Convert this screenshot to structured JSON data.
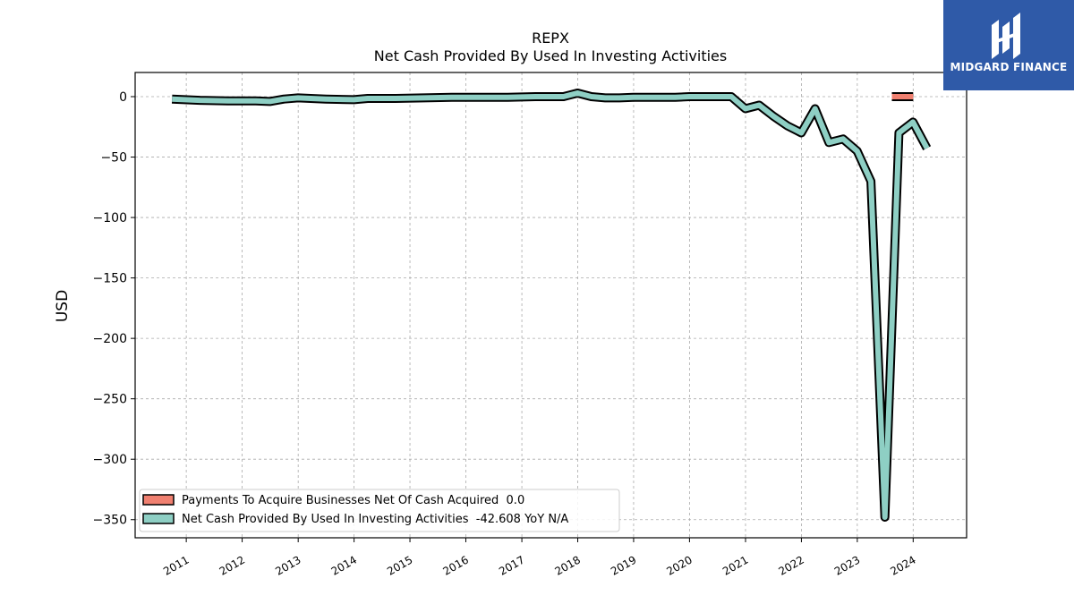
{
  "brand": {
    "name": "MIDGARD FINANCE",
    "bg_color": "#2f5aa8"
  },
  "chart_data": {
    "type": "line",
    "title": "REPX",
    "subtitle": "Net Cash Provided By Used In Investing Activities",
    "ylabel": "USD",
    "xlabel": "",
    "ylim": [
      -365,
      20
    ],
    "yticks": [
      0,
      -50,
      -100,
      -150,
      -200,
      -250,
      -300,
      -350
    ],
    "xlim": [
      "2010-02-01",
      "2024-12-15"
    ],
    "xticks": [
      "2011",
      "2012",
      "2013",
      "2014",
      "2015",
      "2016",
      "2017",
      "2018",
      "2019",
      "2020",
      "2021",
      "2022",
      "2023",
      "2024"
    ],
    "grid": true,
    "legend_position": "lower-left",
    "series": [
      {
        "name": "Payments To Acquire Businesses Net Of Cash Acquired  0.0",
        "color": "#f08070",
        "x": [
          "2023-08-15",
          "2024-01-01"
        ],
        "y": [
          0.0,
          0.0
        ]
      },
      {
        "name": "Net Cash Provided By Used In Investing Activities  -42.608 YoY N/A",
        "color": "#8ecfc4",
        "x": [
          "2010-09-30",
          "2011-03-31",
          "2011-09-30",
          "2012-03-31",
          "2012-06-30",
          "2012-09-30",
          "2012-12-31",
          "2013-06-30",
          "2013-12-31",
          "2014-03-31",
          "2014-09-30",
          "2015-03-31",
          "2015-09-30",
          "2016-03-31",
          "2016-09-30",
          "2017-03-31",
          "2017-09-30",
          "2017-12-31",
          "2018-03-31",
          "2018-06-30",
          "2018-09-30",
          "2018-12-31",
          "2019-03-31",
          "2019-06-30",
          "2019-09-30",
          "2019-12-31",
          "2020-03-31",
          "2020-09-30",
          "2020-12-31",
          "2021-03-31",
          "2021-06-30",
          "2021-09-30",
          "2021-12-31",
          "2022-03-31",
          "2022-06-30",
          "2022-09-30",
          "2022-12-31",
          "2023-03-31",
          "2023-06-30",
          "2023-09-30",
          "2023-12-31",
          "2024-03-31"
        ],
        "y": [
          -2,
          -3,
          -3.5,
          -3.5,
          -4,
          -2,
          -1,
          -2,
          -2.5,
          -1.5,
          -1.5,
          -1,
          -0.5,
          -0.5,
          -0.5,
          0,
          0,
          3,
          0,
          -1,
          -1,
          -0.5,
          -0.5,
          -0.5,
          -0.5,
          0,
          0,
          0,
          -10,
          -7,
          -16,
          -24,
          -30,
          -10,
          -38,
          -35,
          -45,
          -70,
          -348,
          -30,
          -21,
          -42.608
        ]
      }
    ]
  }
}
